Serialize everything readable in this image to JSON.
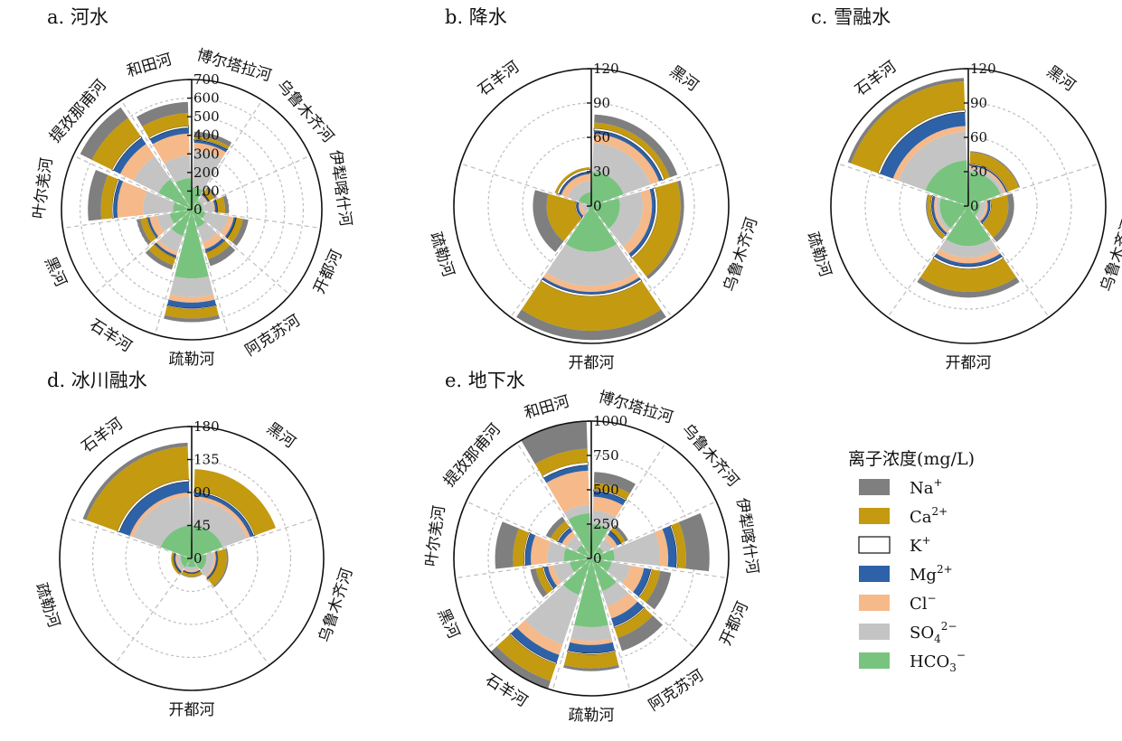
{
  "colors": {
    "Na+": "#7f7f7f",
    "Ca2+": "#c49a10",
    "K+": "#ffffff",
    "Mg2+": "#2e62a8",
    "Cl-": "#f6b98a",
    "SO42-": "#c4c4c4",
    "HCO3-": "#78c47e"
  },
  "legend": {
    "title": "离子浓度(mg/L)",
    "items": [
      {
        "key": "Na+",
        "base": "Na",
        "sup": "+",
        "sub": ""
      },
      {
        "key": "Ca2+",
        "base": "Ca",
        "sup": "2+",
        "sub": ""
      },
      {
        "key": "K+",
        "base": "K",
        "sup": "+",
        "sub": ""
      },
      {
        "key": "Mg2+",
        "base": "Mg",
        "sup": "2+",
        "sub": ""
      },
      {
        "key": "Cl-",
        "base": "Cl",
        "sup": "−",
        "sub": ""
      },
      {
        "key": "SO42-",
        "base": "SO",
        "sup": "2−",
        "sub": "4"
      },
      {
        "key": "HCO3-",
        "base": "HCO",
        "sup": "−",
        "sub": "3"
      }
    ]
  },
  "chart_data": [
    {
      "type": "stacked-polar-bar",
      "title": "a. 河水",
      "max": 700,
      "ticks": [
        0,
        100,
        200,
        300,
        400,
        500,
        600,
        700
      ],
      "series_order": [
        "HCO3-",
        "SO42-",
        "Cl-",
        "Mg2+",
        "K+",
        "Ca2+",
        "Na+"
      ],
      "categories": [
        "博尔塔拉河",
        "乌鲁木齐河",
        "伊犁喀什河",
        "开都河",
        "阿克苏河",
        "疏勒河",
        "石羊河",
        "黑河",
        "叶尔羌河",
        "提孜那甫河",
        "和田河"
      ],
      "values": [
        [
          120,
          200,
          40,
          15,
          5,
          15,
          25
        ],
        [
          60,
          30,
          5,
          8,
          3,
          30,
          15
        ],
        [
          60,
          55,
          10,
          12,
          3,
          40,
          20
        ],
        [
          75,
          125,
          30,
          12,
          3,
          35,
          30
        ],
        [
          100,
          85,
          40,
          15,
          5,
          35,
          40
        ],
        [
          370,
          100,
          30,
          30,
          5,
          50,
          20
        ],
        [
          150,
          90,
          20,
          10,
          5,
          40,
          25
        ],
        [
          120,
          70,
          40,
          10,
          5,
          35,
          20
        ],
        [
          100,
          160,
          140,
          20,
          8,
          60,
          70
        ],
        [
          200,
          150,
          80,
          40,
          10,
          120,
          70
        ],
        [
          170,
          120,
          120,
          30,
          10,
          70,
          60
        ]
      ]
    },
    {
      "type": "stacked-polar-bar",
      "title": "b. 降水",
      "max": 120,
      "ticks": [
        0,
        30,
        60,
        90,
        120
      ],
      "series_order": [
        "HCO3-",
        "SO42-",
        "Cl-",
        "Mg2+",
        "K+",
        "Ca2+",
        "Na+"
      ],
      "categories": [
        "黑河",
        "乌鲁木齐河",
        "开都河",
        "疏勒河",
        "石羊河"
      ],
      "values": [
        [
          30,
          25,
          8,
          3,
          2,
          5,
          7
        ],
        [
          25,
          20,
          8,
          3,
          2,
          20,
          3
        ],
        [
          40,
          30,
          5,
          2,
          2,
          30,
          8
        ],
        [
          3,
          5,
          3,
          2,
          1,
          25,
          12
        ],
        [
          12,
          10,
          6,
          2,
          2,
          2,
          0
        ]
      ]
    },
    {
      "type": "stacked-polar-bar",
      "title": "c. 雪融水",
      "max": 120,
      "ticks": [
        0,
        30,
        60,
        90,
        120
      ],
      "series_order": [
        "HCO3-",
        "SO42-",
        "Cl-",
        "Mg2+",
        "K+",
        "Ca2+",
        "Na+"
      ],
      "categories": [
        "黑河",
        "乌鲁木齐河",
        "开都河",
        "疏勒河",
        "石羊河"
      ],
      "values": [
        [
          30,
          3,
          2,
          1,
          1,
          10,
          1
        ],
        [
          10,
          5,
          2,
          2,
          1,
          15,
          5
        ],
        [
          35,
          10,
          5,
          3,
          2,
          20,
          5
        ],
        [
          25,
          3,
          2,
          2,
          1,
          3,
          1
        ],
        [
          40,
          25,
          5,
          12,
          2,
          25,
          3
        ]
      ]
    },
    {
      "type": "stacked-polar-bar",
      "title": "d. 冰川融水",
      "max": 180,
      "ticks": [
        0,
        45,
        90,
        135,
        180
      ],
      "series_order": [
        "HCO3-",
        "SO42-",
        "Cl-",
        "Mg2+",
        "K+",
        "Ca2+",
        "Na+"
      ],
      "categories": [
        "黑河",
        "乌鲁木齐河",
        "开都河",
        "疏勒河",
        "石羊河"
      ],
      "values": [
        [
          45,
          35,
          5,
          5,
          2,
          30,
          0
        ],
        [
          20,
          10,
          3,
          2,
          1,
          12,
          2
        ],
        [
          12,
          5,
          2,
          1,
          1,
          4,
          1
        ],
        [
          15,
          5,
          2,
          2,
          1,
          3,
          0
        ],
        [
          45,
          40,
          5,
          15,
          3,
          45,
          5
        ]
      ]
    },
    {
      "type": "stacked-polar-bar",
      "title": "e. 地下水",
      "max": 1000,
      "ticks": [
        0,
        250,
        500,
        750,
        1000
      ],
      "series_order": [
        "HCO3-",
        "SO42-",
        "Cl-",
        "Mg2+",
        "K+",
        "Ca2+",
        "Na+"
      ],
      "categories": [
        "博尔塔拉河",
        "乌鲁木齐河",
        "伊犁喀什河",
        "开都河",
        "阿克苏河",
        "疏勒河",
        "石羊河",
        "黑河",
        "叶尔羌河",
        "提孜那甫河",
        "和田河"
      ],
      "values": [
        [
          250,
          100,
          100,
          40,
          10,
          50,
          80
        ],
        [
          100,
          70,
          40,
          30,
          5,
          30,
          25
        ],
        [
          170,
          330,
          60,
          60,
          10,
          60,
          170
        ],
        [
          150,
          140,
          100,
          50,
          10,
          60,
          80
        ],
        [
          250,
          120,
          90,
          60,
          10,
          80,
          100
        ],
        [
          500,
          100,
          30,
          60,
          10,
          100,
          20
        ],
        [
          280,
          380,
          80,
          60,
          10,
          130,
          140
        ],
        [
          160,
          120,
          40,
          30,
          10,
          50,
          40
        ],
        [
          200,
          120,
          120,
          40,
          10,
          80,
          130
        ],
        [
          120,
          80,
          40,
          30,
          10,
          50,
          40
        ],
        [
          330,
          60,
          250,
          40,
          20,
          100,
          220
        ]
      ]
    }
  ]
}
